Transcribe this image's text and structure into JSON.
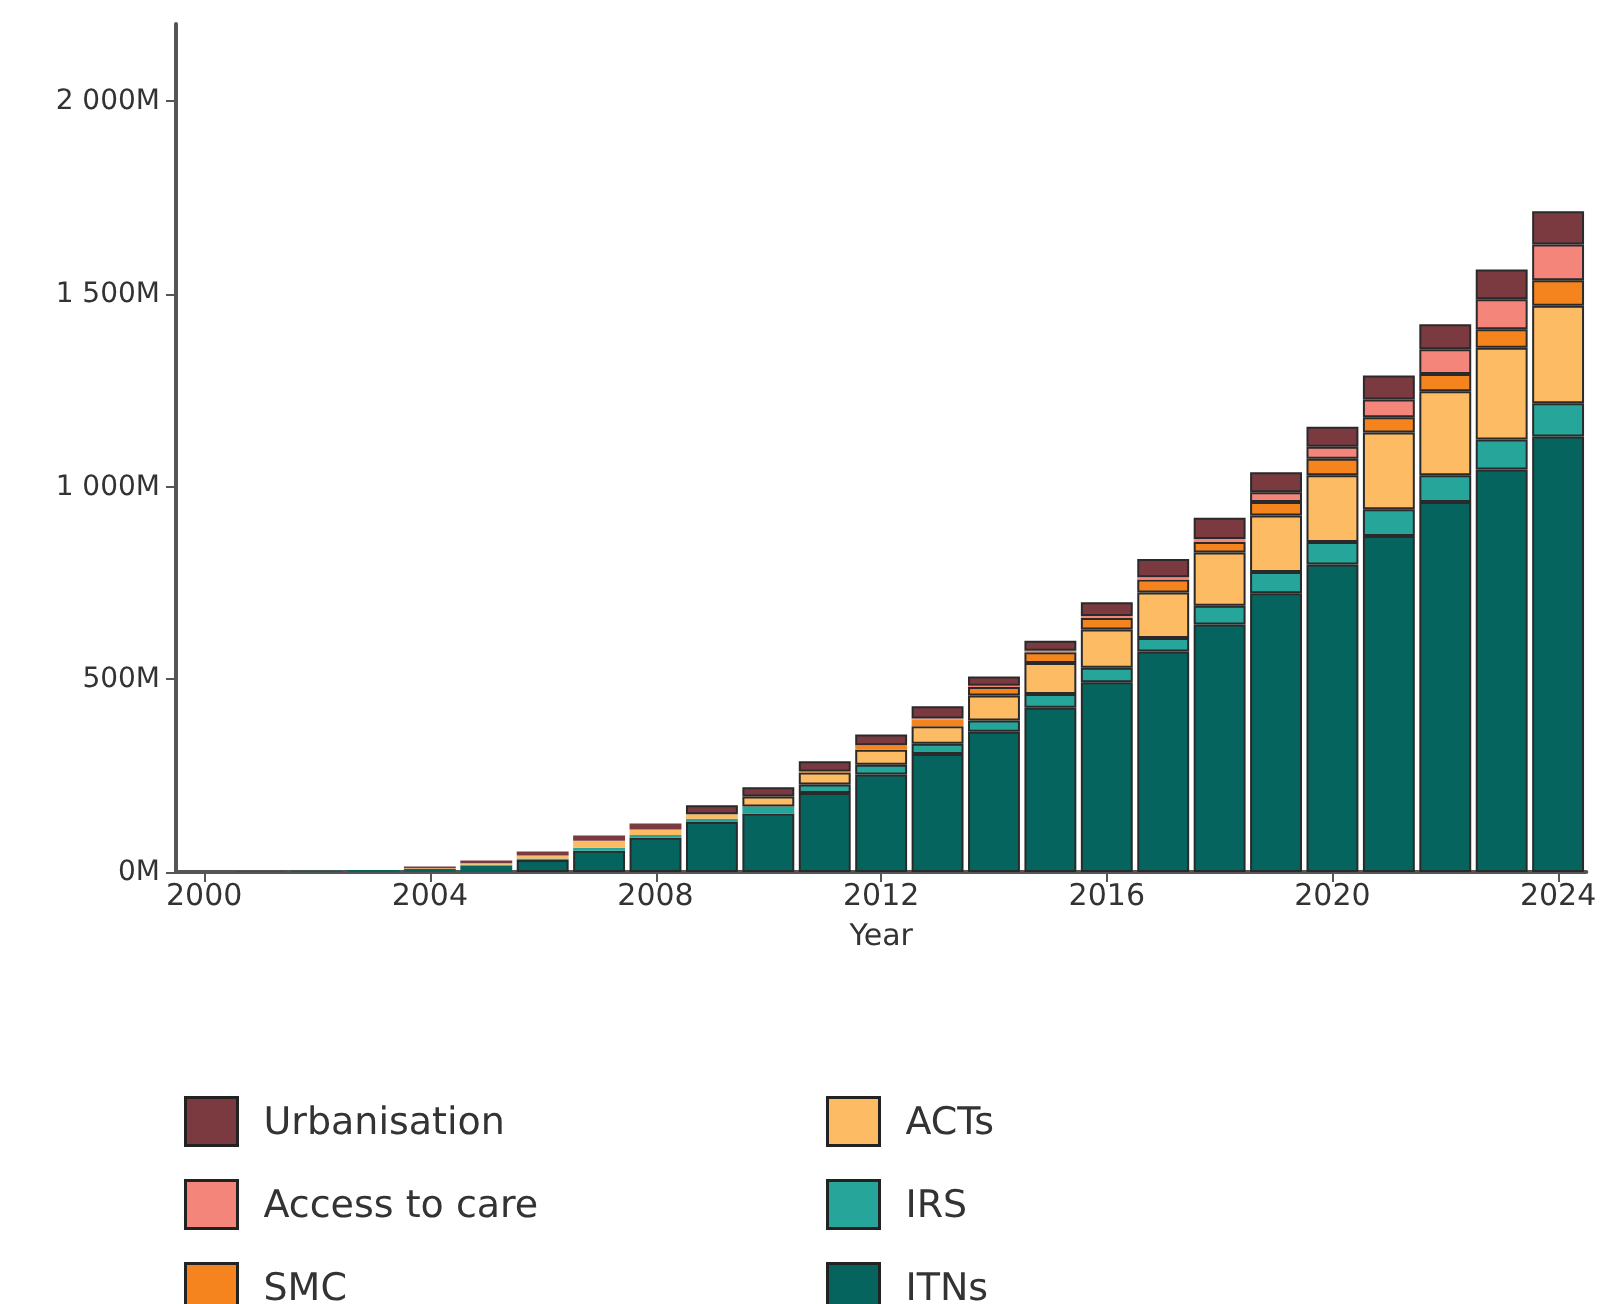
{
  "chart_data": {
    "type": "bar",
    "stacked": true,
    "xlabel": "Year",
    "categories": [
      "2000",
      null,
      null,
      null,
      "2004",
      null,
      null,
      null,
      "2008",
      null,
      null,
      null,
      "2012",
      null,
      null,
      null,
      "2016",
      null,
      null,
      null,
      "2020",
      null,
      null,
      null,
      "2024"
    ],
    "ylim": [
      0,
      2200
    ],
    "yticks": [
      {
        "value": 0,
        "label": "0M"
      },
      {
        "value": 500,
        "label": "500M"
      },
      {
        "value": 1000,
        "label": "1 000M"
      },
      {
        "value": 1500,
        "label": "1 500M"
      },
      {
        "value": 2000,
        "label": "2 000M"
      }
    ],
    "grid": false,
    "legend": "bottom",
    "series": [
      {
        "name": "ITNs",
        "color": "#05655e",
        "values": [
          null,
          2,
          3,
          5,
          8,
          17,
          31,
          55,
          89,
          130,
          152,
          205,
          253,
          306,
          364,
          426,
          492,
          572,
          642,
          723,
          798,
          872,
          960,
          1044,
          1130
        ]
      },
      {
        "name": "IRS",
        "color": "#26a69a",
        "values": [
          0,
          0,
          0,
          0,
          0,
          2,
          4,
          8,
          7,
          8,
          18,
          22,
          25,
          27,
          29,
          36,
          38,
          35,
          49,
          55,
          58,
          69,
          69,
          78,
          86
        ]
      },
      {
        "name": "ACTs",
        "color": "#fdbb63",
        "values": [
          0,
          0,
          0,
          0,
          2,
          4,
          8,
          18,
          14,
          12,
          26,
          31,
          39,
          45,
          65,
          80,
          99,
          118,
          138,
          147,
          173,
          199,
          218,
          238,
          253
        ]
      },
      {
        "name": "SMC",
        "color": "#f5841f",
        "values": [
          0,
          0,
          0,
          0,
          0,
          0,
          0,
          0,
          0,
          0,
          null,
          3,
          10,
          17,
          22,
          28,
          30,
          34,
          27,
          35,
          43,
          40,
          45,
          48,
          66
        ]
      },
      {
        "name": "Access to care",
        "color": "#f4857a",
        "values": [
          0,
          0,
          0,
          0,
          0,
          0,
          0,
          0,
          0,
          0,
          0,
          0,
          2,
          3,
          3,
          4,
          5,
          6,
          8,
          25,
          31,
          46,
          64,
          78,
          93
        ]
      },
      {
        "name": "Urbanisation",
        "color": "#7b3a40",
        "values": [
          0,
          0,
          0,
          0,
          4,
          7,
          10,
          14,
          16,
          23,
          24,
          26,
          28,
          32,
          24,
          26,
          36,
          47,
          55,
          52,
          52,
          62,
          65,
          77,
          86
        ]
      }
    ]
  }
}
